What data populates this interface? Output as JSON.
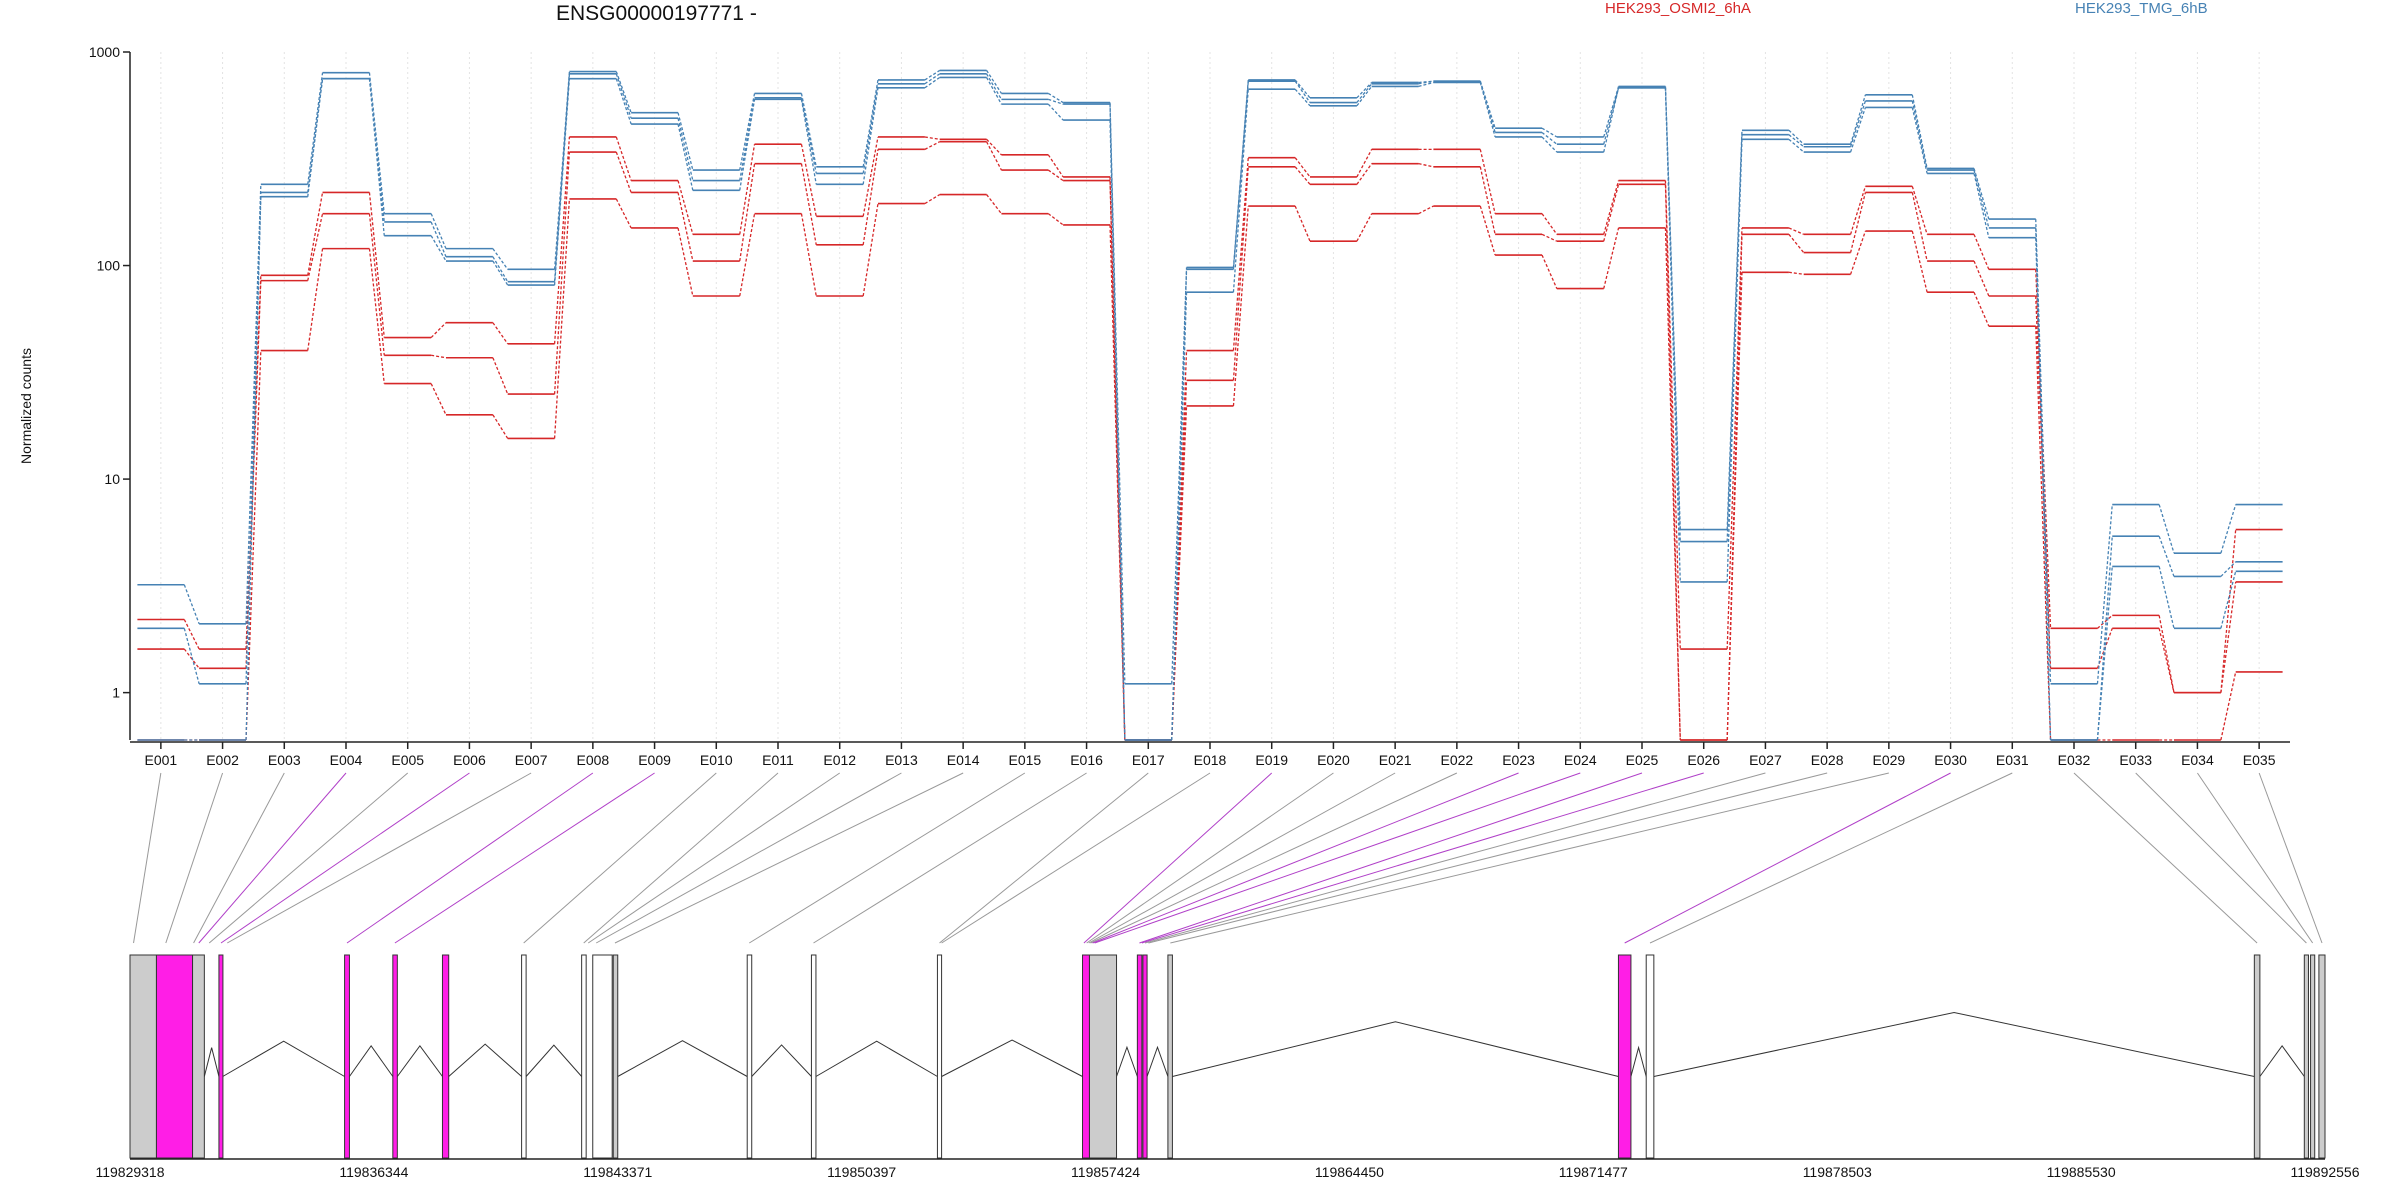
{
  "chart_data": {
    "type": "line",
    "title": "ENSG00000197771 -",
    "xlabel": "",
    "ylabel": "Normalized counts",
    "yscale": "log",
    "ylim": [
      0.6,
      1000
    ],
    "yticks": [
      1,
      10,
      100,
      1000
    ],
    "ytick_labels": [
      "1",
      "10",
      "100",
      "1000"
    ],
    "grid": "vertical",
    "legend_placement": "top",
    "categories": [
      "E001",
      "E002",
      "E003",
      "E004",
      "E005",
      "E006",
      "E007",
      "E008",
      "E009",
      "E010",
      "E011",
      "E012",
      "E013",
      "E014",
      "E015",
      "E016",
      "E017",
      "E018",
      "E019",
      "E020",
      "E021",
      "E022",
      "E023",
      "E024",
      "E025",
      "E026",
      "E027",
      "E028",
      "E029",
      "E030",
      "E031",
      "E032",
      "E033",
      "E034",
      "E035"
    ],
    "groups": [
      {
        "name": "HEK293_OSMI2_6hA",
        "color": "#d62728"
      },
      {
        "name": "HEK293_TMG_6hB",
        "color": "#4682b4"
      }
    ],
    "series": [
      {
        "group": 0,
        "values": [
          2.2,
          1.6,
          90,
          220,
          46,
          54,
          43,
          400,
          250,
          140,
          370,
          170,
          400,
          390,
          330,
          260,
          0.6,
          40,
          320,
          260,
          350,
          350,
          175,
          140,
          250,
          1.6,
          150,
          140,
          235,
          140,
          96,
          2.0,
          2.3,
          1.0,
          5.8
        ]
      },
      {
        "group": 0,
        "values": [
          1.6,
          1.3,
          85,
          175,
          38,
          37,
          25,
          340,
          220,
          105,
          300,
          125,
          350,
          380,
          280,
          250,
          0.6,
          29,
          290,
          240,
          300,
          290,
          140,
          130,
          240,
          0.6,
          140,
          115,
          220,
          105,
          72,
          1.3,
          2.0,
          1.0,
          3.3
        ]
      },
      {
        "group": 0,
        "values": [
          0.6,
          0.6,
          40,
          120,
          28,
          20,
          15.5,
          205,
          150,
          72,
          175,
          72,
          195,
          215,
          175,
          155,
          0.6,
          22,
          190,
          130,
          175,
          190,
          112,
          78,
          150,
          0.6,
          93,
          91,
          145,
          75,
          52,
          0.6,
          0.6,
          0.6,
          1.25
        ]
      },
      {
        "group": 1,
        "values": [
          3.2,
          2.1,
          240,
          800,
          175,
          120,
          96,
          810,
          520,
          280,
          640,
          290,
          740,
          820,
          640,
          580,
          1.1,
          98,
          740,
          610,
          720,
          730,
          440,
          400,
          690,
          5.8,
          430,
          370,
          630,
          285,
          165,
          1.1,
          7.6,
          4.5,
          7.6
        ]
      },
      {
        "group": 1,
        "values": [
          2.0,
          1.1,
          220,
          750,
          160,
          110,
          84,
          790,
          490,
          250,
          610,
          270,
          710,
          790,
          600,
          570,
          0.6,
          96,
          730,
          580,
          710,
          730,
          420,
          370,
          680,
          5.1,
          410,
          360,
          590,
          280,
          150,
          0.6,
          5.4,
          3.5,
          4.1
        ]
      },
      {
        "group": 1,
        "values": [
          0.6,
          0.6,
          210,
          750,
          138,
          105,
          81,
          750,
          460,
          225,
          600,
          240,
          680,
          760,
          570,
          480,
          0.6,
          75,
          670,
          560,
          690,
          720,
          400,
          340,
          680,
          3.3,
          390,
          340,
          550,
          270,
          135,
          0.6,
          3.9,
          2.0,
          3.7
        ]
      }
    ],
    "genome_axis": {
      "tick_labels": [
        "119829318",
        "119836344",
        "119843371",
        "119850397",
        "119857424",
        "119864450",
        "119871477",
        "119878503",
        "119885530",
        "119892556"
      ],
      "range": [
        119829318,
        119892556
      ]
    },
    "exons": [
      {
        "start": 119829318,
        "end": 119830080,
        "color": "gray"
      },
      {
        "start": 119830080,
        "end": 119831120,
        "color": "magenta"
      },
      {
        "start": 119831120,
        "end": 119831460,
        "color": "gray"
      },
      {
        "start": 119831880,
        "end": 119831990,
        "color": "magenta"
      },
      {
        "start": 119835500,
        "end": 119835640,
        "color": "magenta"
      },
      {
        "start": 119836890,
        "end": 119837020,
        "color": "magenta"
      },
      {
        "start": 119838320,
        "end": 119838500,
        "color": "magenta"
      },
      {
        "start": 119840600,
        "end": 119840730,
        "color": "white"
      },
      {
        "start": 119842330,
        "end": 119842460,
        "color": "white"
      },
      {
        "start": 119842650,
        "end": 119843210,
        "color": "white"
      },
      {
        "start": 119843240,
        "end": 119843370,
        "color": "gray"
      },
      {
        "start": 119847100,
        "end": 119847230,
        "color": "white"
      },
      {
        "start": 119848950,
        "end": 119849080,
        "color": "white"
      },
      {
        "start": 119852580,
        "end": 119852700,
        "color": "white"
      },
      {
        "start": 119856760,
        "end": 119856960,
        "color": "magenta"
      },
      {
        "start": 119856960,
        "end": 119857740,
        "color": "gray"
      },
      {
        "start": 119858340,
        "end": 119858470,
        "color": "magenta"
      },
      {
        "start": 119858500,
        "end": 119858620,
        "color": "magenta"
      },
      {
        "start": 119859220,
        "end": 119859350,
        "color": "gray"
      },
      {
        "start": 119872200,
        "end": 119872560,
        "color": "magenta"
      },
      {
        "start": 119873000,
        "end": 119873220,
        "color": "white"
      },
      {
        "start": 119890520,
        "end": 119890680,
        "color": "gray"
      },
      {
        "start": 119891960,
        "end": 119892080,
        "color": "gray"
      },
      {
        "start": 119892140,
        "end": 119892260,
        "color": "gray"
      },
      {
        "start": 119892380,
        "end": 119892556,
        "color": "gray"
      }
    ],
    "connectors": [
      {
        "exon": "E001",
        "pos": 119829420,
        "color": "gray"
      },
      {
        "exon": "E002",
        "pos": 119830350,
        "color": "gray"
      },
      {
        "exon": "E003",
        "pos": 119831150,
        "color": "gray"
      },
      {
        "exon": "E004",
        "pos": 119831300,
        "color": "magenta"
      },
      {
        "exon": "E005",
        "pos": 119831600,
        "color": "gray"
      },
      {
        "exon": "E006",
        "pos": 119831940,
        "color": "magenta"
      },
      {
        "exon": "E007",
        "pos": 119832120,
        "color": "gray"
      },
      {
        "exon": "E008",
        "pos": 119835570,
        "color": "magenta"
      },
      {
        "exon": "E009",
        "pos": 119836950,
        "color": "magenta"
      },
      {
        "exon": "E010",
        "pos": 119840660,
        "color": "gray"
      },
      {
        "exon": "E011",
        "pos": 119842390,
        "color": "gray"
      },
      {
        "exon": "E012",
        "pos": 119842520,
        "color": "gray"
      },
      {
        "exon": "E013",
        "pos": 119842750,
        "color": "gray"
      },
      {
        "exon": "E014",
        "pos": 119843290,
        "color": "gray"
      },
      {
        "exon": "E015",
        "pos": 119847160,
        "color": "gray"
      },
      {
        "exon": "E016",
        "pos": 119849010,
        "color": "gray"
      },
      {
        "exon": "E017",
        "pos": 119852640,
        "color": "gray"
      },
      {
        "exon": "E018",
        "pos": 119852700,
        "color": "gray"
      },
      {
        "exon": "E019",
        "pos": 119856800,
        "color": "magenta"
      },
      {
        "exon": "E020",
        "pos": 119856880,
        "color": "gray"
      },
      {
        "exon": "E021",
        "pos": 119856940,
        "color": "gray"
      },
      {
        "exon": "E022",
        "pos": 119856990,
        "color": "gray"
      },
      {
        "exon": "E023",
        "pos": 119857050,
        "color": "magenta"
      },
      {
        "exon": "E024",
        "pos": 119857110,
        "color": "magenta"
      },
      {
        "exon": "E025",
        "pos": 119858400,
        "color": "magenta"
      },
      {
        "exon": "E026",
        "pos": 119858470,
        "color": "magenta"
      },
      {
        "exon": "E027",
        "pos": 119858560,
        "color": "gray"
      },
      {
        "exon": "E028",
        "pos": 119858660,
        "color": "gray"
      },
      {
        "exon": "E029",
        "pos": 119859290,
        "color": "gray"
      },
      {
        "exon": "E030",
        "pos": 119872380,
        "color": "magenta"
      },
      {
        "exon": "E031",
        "pos": 119873110,
        "color": "gray"
      },
      {
        "exon": "E032",
        "pos": 119890600,
        "color": "gray"
      },
      {
        "exon": "E033",
        "pos": 119892020,
        "color": "gray"
      },
      {
        "exon": "E034",
        "pos": 119892200,
        "color": "gray"
      },
      {
        "exon": "E035",
        "pos": 119892470,
        "color": "gray"
      }
    ],
    "colors": {
      "group_a": "#d62728",
      "group_b": "#4682b4",
      "exon_magenta": "#ff1ee6",
      "exon_gray": "#cccccc",
      "exon_white": "#ffffff",
      "connector_magenta": "#b040c8",
      "connector_gray": "#999999"
    }
  }
}
